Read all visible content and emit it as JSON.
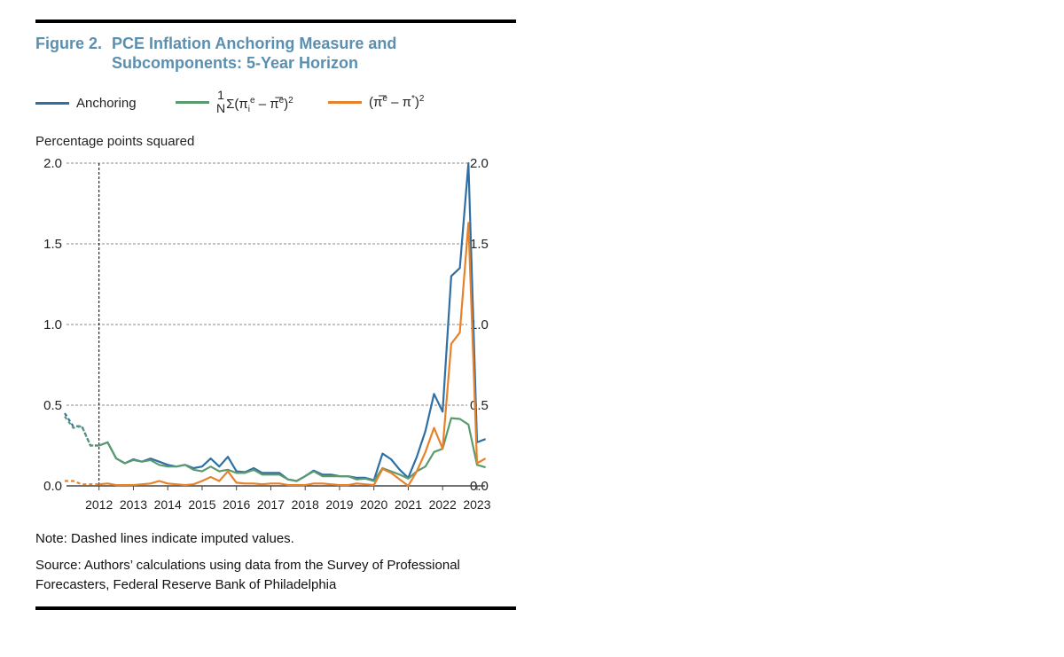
{
  "title": {
    "number": "Figure 2.",
    "line1": "PCE Inflation Anchoring Measure and",
    "line2": "Subcomponents: 5-Year Horizon"
  },
  "legend": {
    "anchoring": "Anchoring",
    "dispersion": {
      "num": "1",
      "den": "N",
      "body": "Σ(π",
      "sub_i": "i",
      "sup_e": "e",
      "mid": " – π̅",
      "sup_e2": "e",
      "close": ")",
      "sq": "2"
    },
    "deviation": {
      "open": "(π̅",
      "sup_e": "e",
      "mid": " – π",
      "sup_star": "*",
      "close": ")",
      "sq": "2"
    }
  },
  "notes": {
    "note": "Note: Dashed lines indicate imputed values.",
    "source": "Source: Authors’ calculations using data from the Survey of Professional Forecasters, Federal Reserve Bank of Philadelphia"
  },
  "chart_data": {
    "type": "line",
    "title": "PCE Inflation Anchoring Measure and Subcomponents: 5-Year Horizon",
    "ylabel": "Percentage points squared",
    "ylim": [
      0,
      2.0
    ],
    "yticks": [
      "0.0",
      "0.5",
      "1.0",
      "1.5",
      "2.0"
    ],
    "y_axis_both_sides": true,
    "xticks": [
      "2012",
      "2013",
      "2014",
      "2015",
      "2016",
      "2017",
      "2018",
      "2019",
      "2020",
      "2021",
      "2022",
      "2023"
    ],
    "grid": "horizontal dashed",
    "imputed_through": "2011Q4",
    "x": [
      "2011Q1",
      "2011Q2",
      "2011Q3",
      "2011Q4",
      "2012Q1",
      "2012Q2",
      "2012Q3",
      "2012Q4",
      "2013Q1",
      "2013Q2",
      "2013Q3",
      "2013Q4",
      "2014Q1",
      "2014Q2",
      "2014Q3",
      "2014Q4",
      "2015Q1",
      "2015Q2",
      "2015Q3",
      "2015Q4",
      "2016Q1",
      "2016Q2",
      "2016Q3",
      "2016Q4",
      "2017Q1",
      "2017Q2",
      "2017Q3",
      "2017Q4",
      "2018Q1",
      "2018Q2",
      "2018Q3",
      "2018Q4",
      "2019Q1",
      "2019Q2",
      "2019Q3",
      "2019Q4",
      "2020Q1",
      "2020Q2",
      "2020Q3",
      "2020Q4",
      "2021Q1",
      "2021Q2",
      "2021Q3",
      "2021Q4",
      "2022Q1",
      "2022Q2",
      "2022Q3",
      "2022Q4",
      "2023Q1",
      "2023Q2"
    ],
    "series": [
      {
        "name": "Anchoring",
        "color": "#2f6fa3",
        "values": [
          0.45,
          0.37,
          0.37,
          0.25,
          0.25,
          0.27,
          0.17,
          0.14,
          0.165,
          0.15,
          0.17,
          0.15,
          0.13,
          0.12,
          0.13,
          0.11,
          0.12,
          0.17,
          0.12,
          0.18,
          0.09,
          0.085,
          0.11,
          0.08,
          0.08,
          0.08,
          0.04,
          0.03,
          0.06,
          0.095,
          0.07,
          0.07,
          0.06,
          0.06,
          0.05,
          0.05,
          0.035,
          0.2,
          0.165,
          0.1,
          0.05,
          0.18,
          0.34,
          0.57,
          0.46,
          1.3,
          1.35,
          2.0,
          0.27,
          0.29
        ]
      },
      {
        "name": "1/N Σ(π_i^e – π̅^e)^2",
        "color": "#5a9a6e",
        "values": [
          0.43,
          0.36,
          0.37,
          0.25,
          0.25,
          0.27,
          0.17,
          0.14,
          0.16,
          0.15,
          0.16,
          0.13,
          0.12,
          0.12,
          0.13,
          0.1,
          0.09,
          0.12,
          0.09,
          0.1,
          0.08,
          0.08,
          0.1,
          0.07,
          0.07,
          0.07,
          0.04,
          0.03,
          0.06,
          0.09,
          0.06,
          0.06,
          0.06,
          0.06,
          0.04,
          0.045,
          0.03,
          0.11,
          0.09,
          0.07,
          0.045,
          0.09,
          0.12,
          0.21,
          0.23,
          0.42,
          0.415,
          0.38,
          0.13,
          0.115
        ]
      },
      {
        "name": "(π̅^e – π^*)^2",
        "color": "#e8822a",
        "values": [
          0.03,
          0.03,
          0.01,
          0.01,
          0.01,
          0.015,
          0.005,
          0.005,
          0.005,
          0.01,
          0.015,
          0.03,
          0.015,
          0.01,
          0.005,
          0.01,
          0.03,
          0.055,
          0.03,
          0.09,
          0.02,
          0.015,
          0.015,
          0.01,
          0.015,
          0.015,
          0.005,
          0.005,
          0.005,
          0.015,
          0.015,
          0.01,
          0.005,
          0.005,
          0.015,
          0.01,
          0.005,
          0.105,
          0.08,
          0.04,
          0.0,
          0.09,
          0.21,
          0.36,
          0.23,
          0.88,
          0.95,
          1.63,
          0.14,
          0.17
        ]
      }
    ]
  }
}
